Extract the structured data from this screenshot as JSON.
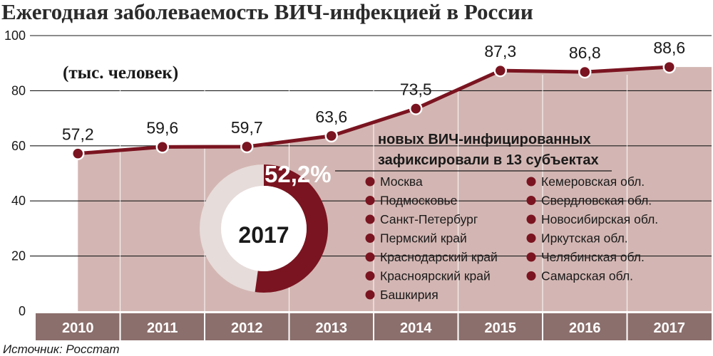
{
  "chart_data": {
    "type": "area",
    "title": "Ежегодная заболеваемость ВИЧ-инфекцией в России",
    "unit_label": "(тыс. человек)",
    "categories": [
      "2010",
      "2011",
      "2012",
      "2013",
      "2014",
      "2015",
      "2016",
      "2017"
    ],
    "values": [
      57.2,
      59.6,
      59.7,
      63.6,
      73.5,
      87.3,
      86.8,
      88.6
    ],
    "value_labels": [
      "57,2",
      "59,6",
      "59,7",
      "63,6",
      "73,5",
      "87,3",
      "86,8",
      "88,6"
    ],
    "ylim": [
      0,
      100
    ],
    "yticks": [
      0,
      20,
      40,
      60,
      80,
      100
    ],
    "grid": true,
    "colors": {
      "line": "#7a1420",
      "area": "#d3b6b3",
      "axis_band": "#8b6f6c",
      "donut_main": "#7a1420",
      "donut_rest": "#e6dcda"
    }
  },
  "inset": {
    "year": "2017",
    "percent_value": 52.2,
    "percent_label": "52,2%",
    "heading_line1": "новых ВИЧ-инфицированных",
    "heading_line2": "зафиксировали в 13 субъектах",
    "regions_left": [
      "Москва",
      "Подмосковье",
      "Санкт-Петербург",
      "Пермский край",
      "Краснодарский край",
      "Красноярский край",
      "Башкирия"
    ],
    "regions_right": [
      "Кемеровская обл.",
      "Свердловская обл.",
      "Новосибирская обл.",
      "Иркутская обл.",
      "Челябинская обл.",
      "Самарская обл."
    ]
  },
  "source": "Источник: Росстат"
}
